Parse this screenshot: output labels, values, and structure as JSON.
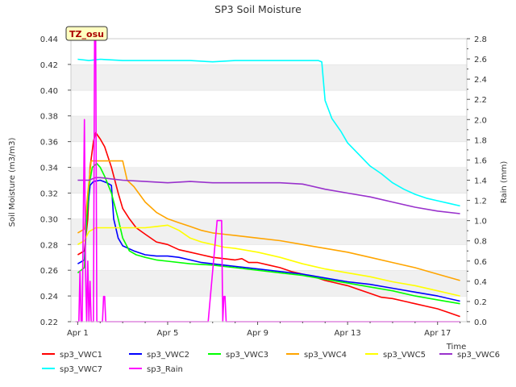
{
  "chart_data": {
    "type": "line",
    "title": "SP3 Soil Moisture",
    "badge": "TZ_osu",
    "xlabel": "Time",
    "ylabel_left": "Soil Moisture (m3/m3)",
    "ylabel_right": "Rain (mm)",
    "x_unit": "days since Apr 1",
    "xlim": [
      -0.3,
      17.3
    ],
    "ylim_left": [
      0.22,
      0.44
    ],
    "ylim_right": [
      0.0,
      2.8
    ],
    "x_ticks": [
      {
        "pos": 0,
        "label": "Apr 1"
      },
      {
        "pos": 4,
        "label": "Apr 5"
      },
      {
        "pos": 8,
        "label": "Apr 9"
      },
      {
        "pos": 12,
        "label": "Apr 13"
      },
      {
        "pos": 16,
        "label": "Apr 17"
      }
    ],
    "y_ticks_left": [
      "0.22",
      "0.24",
      "0.26",
      "0.28",
      "0.30",
      "0.32",
      "0.34",
      "0.36",
      "0.38",
      "0.40",
      "0.42",
      "0.44"
    ],
    "y_ticks_right": [
      "0.0",
      "0.2",
      "0.4",
      "0.6",
      "0.8",
      "1.0",
      "1.2",
      "1.4",
      "1.6",
      "1.8",
      "2.0",
      "2.2",
      "2.4",
      "2.6",
      "2.8"
    ],
    "grid": true,
    "legend_position": "bottom",
    "series": [
      {
        "name": "sp3_VWC1",
        "color": "#ff0000",
        "axis": "left",
        "x": [
          0.0,
          0.3,
          0.45,
          0.55,
          0.7,
          0.8,
          1.0,
          1.2,
          1.5,
          1.8,
          2.0,
          2.3,
          2.6,
          3.0,
          3.5,
          4.0,
          4.5,
          5.0,
          5.5,
          6.0,
          6.5,
          7.0,
          7.3,
          7.6,
          8.0,
          8.5,
          9.0,
          9.5,
          10.0,
          10.5,
          11.0,
          11.5,
          12.0,
          12.5,
          13.0,
          13.5,
          14.0,
          14.5,
          15.0,
          15.5,
          16.0,
          16.5,
          17.0
        ],
        "y": [
          0.272,
          0.275,
          0.3,
          0.34,
          0.36,
          0.367,
          0.362,
          0.356,
          0.34,
          0.32,
          0.308,
          0.3,
          0.293,
          0.288,
          0.282,
          0.28,
          0.276,
          0.274,
          0.272,
          0.27,
          0.269,
          0.268,
          0.269,
          0.266,
          0.266,
          0.264,
          0.262,
          0.259,
          0.257,
          0.255,
          0.252,
          0.25,
          0.248,
          0.245,
          0.242,
          0.239,
          0.238,
          0.236,
          0.234,
          0.232,
          0.23,
          0.227,
          0.224
        ]
      },
      {
        "name": "sp3_VWC2",
        "color": "#0000ff",
        "axis": "left",
        "x": [
          0.0,
          0.3,
          0.4,
          0.55,
          0.7,
          1.0,
          1.3,
          1.5,
          1.6,
          1.8,
          2.0,
          2.5,
          3.0,
          3.5,
          4.0,
          4.5,
          5.0,
          5.5,
          6.0,
          6.5,
          7.0,
          8.0,
          9.0,
          10.0,
          11.0,
          12.0,
          13.0,
          14.0,
          15.0,
          16.0,
          17.0
        ],
        "y": [
          0.265,
          0.268,
          0.3,
          0.326,
          0.329,
          0.33,
          0.328,
          0.326,
          0.3,
          0.285,
          0.279,
          0.275,
          0.272,
          0.271,
          0.271,
          0.27,
          0.268,
          0.266,
          0.265,
          0.264,
          0.263,
          0.261,
          0.259,
          0.257,
          0.254,
          0.251,
          0.249,
          0.246,
          0.243,
          0.24,
          0.236
        ]
      },
      {
        "name": "sp3_VWC3",
        "color": "#00ff00",
        "axis": "left",
        "x": [
          0.0,
          0.3,
          0.4,
          0.5,
          0.65,
          0.85,
          1.0,
          1.2,
          1.5,
          1.8,
          2.0,
          2.3,
          2.6,
          3.0,
          3.5,
          4.0,
          5.0,
          6.0,
          7.0,
          8.0,
          9.0,
          10.0,
          11.0,
          12.0,
          13.0,
          14.0,
          15.0,
          16.0,
          17.0
        ],
        "y": [
          0.258,
          0.262,
          0.3,
          0.325,
          0.34,
          0.343,
          0.34,
          0.333,
          0.32,
          0.3,
          0.285,
          0.275,
          0.272,
          0.27,
          0.268,
          0.267,
          0.265,
          0.264,
          0.262,
          0.26,
          0.258,
          0.256,
          0.253,
          0.25,
          0.247,
          0.244,
          0.24,
          0.237,
          0.234
        ]
      },
      {
        "name": "sp3_VWC4",
        "color": "#ffa500",
        "axis": "left",
        "x": [
          0.0,
          0.3,
          0.45,
          0.6,
          1.0,
          1.5,
          2.0,
          2.2,
          2.5,
          3.0,
          3.5,
          4.0,
          4.5,
          5.0,
          5.5,
          6.0,
          6.5,
          7.0,
          8.0,
          9.0,
          10.0,
          11.0,
          12.0,
          13.0,
          14.0,
          15.0,
          16.0,
          17.0
        ],
        "y": [
          0.289,
          0.292,
          0.32,
          0.345,
          0.345,
          0.345,
          0.345,
          0.33,
          0.325,
          0.313,
          0.305,
          0.3,
          0.297,
          0.294,
          0.291,
          0.289,
          0.288,
          0.287,
          0.285,
          0.283,
          0.28,
          0.277,
          0.274,
          0.27,
          0.266,
          0.262,
          0.257,
          0.252
        ]
      },
      {
        "name": "sp3_VWC5",
        "color": "#ffff00",
        "axis": "left",
        "x": [
          0.0,
          0.3,
          0.5,
          0.8,
          1.0,
          2.0,
          3.0,
          3.5,
          4.0,
          4.5,
          5.0,
          5.5,
          6.0,
          6.5,
          7.0,
          8.0,
          9.0,
          10.0,
          11.0,
          12.0,
          13.0,
          14.0,
          15.0,
          16.0,
          17.0
        ],
        "y": [
          0.28,
          0.283,
          0.29,
          0.293,
          0.293,
          0.293,
          0.293,
          0.294,
          0.295,
          0.291,
          0.285,
          0.282,
          0.28,
          0.278,
          0.277,
          0.274,
          0.27,
          0.265,
          0.261,
          0.258,
          0.255,
          0.251,
          0.248,
          0.244,
          0.24
        ]
      },
      {
        "name": "sp3_VWC6",
        "color": "#9932cc",
        "axis": "left",
        "x": [
          0.0,
          0.5,
          0.8,
          1.0,
          1.5,
          2.0,
          3.0,
          4.0,
          5.0,
          6.0,
          7.0,
          8.0,
          9.0,
          10.0,
          11.0,
          12.0,
          13.0,
          14.0,
          15.0,
          16.0,
          17.0
        ],
        "y": [
          0.33,
          0.33,
          0.332,
          0.332,
          0.331,
          0.33,
          0.329,
          0.328,
          0.329,
          0.328,
          0.328,
          0.328,
          0.328,
          0.327,
          0.323,
          0.32,
          0.317,
          0.313,
          0.309,
          0.306,
          0.304
        ]
      },
      {
        "name": "sp3_VWC7",
        "color": "#00ffff",
        "axis": "left",
        "x": [
          0.0,
          0.5,
          1.0,
          2.0,
          3.0,
          4.0,
          5.0,
          6.0,
          7.0,
          8.0,
          9.0,
          10.0,
          10.7,
          10.85,
          11.0,
          11.3,
          11.7,
          12.0,
          12.5,
          13.0,
          13.5,
          14.0,
          14.5,
          15.0,
          15.5,
          16.0,
          16.5,
          17.0
        ],
        "y": [
          0.424,
          0.423,
          0.424,
          0.423,
          0.423,
          0.423,
          0.423,
          0.422,
          0.423,
          0.423,
          0.423,
          0.423,
          0.423,
          0.422,
          0.392,
          0.378,
          0.368,
          0.359,
          0.35,
          0.341,
          0.335,
          0.328,
          0.323,
          0.319,
          0.316,
          0.314,
          0.312,
          0.31
        ]
      },
      {
        "name": "sp3_Rain",
        "color": "#ff00ff",
        "axis": "right",
        "x": [
          -0.1,
          0.05,
          0.1,
          0.15,
          0.2,
          0.3,
          0.35,
          0.4,
          0.45,
          0.5,
          0.55,
          0.6,
          0.7,
          0.75,
          0.8,
          0.85,
          1.0,
          1.1,
          1.15,
          1.2,
          1.25,
          1.3,
          5.8,
          6.2,
          6.4,
          6.45,
          6.5,
          6.55,
          6.6,
          17.0
        ],
        "y": [
          0.0,
          0.0,
          0.5,
          0.0,
          0.0,
          2.0,
          0.5,
          0.0,
          0.6,
          0.0,
          0.4,
          0.0,
          0.0,
          2.8,
          2.8,
          0.0,
          0.0,
          0.0,
          0.25,
          0.25,
          0.0,
          0.0,
          0.0,
          1.0,
          1.0,
          0.0,
          0.25,
          0.25,
          0.0,
          0.0
        ]
      }
    ]
  }
}
